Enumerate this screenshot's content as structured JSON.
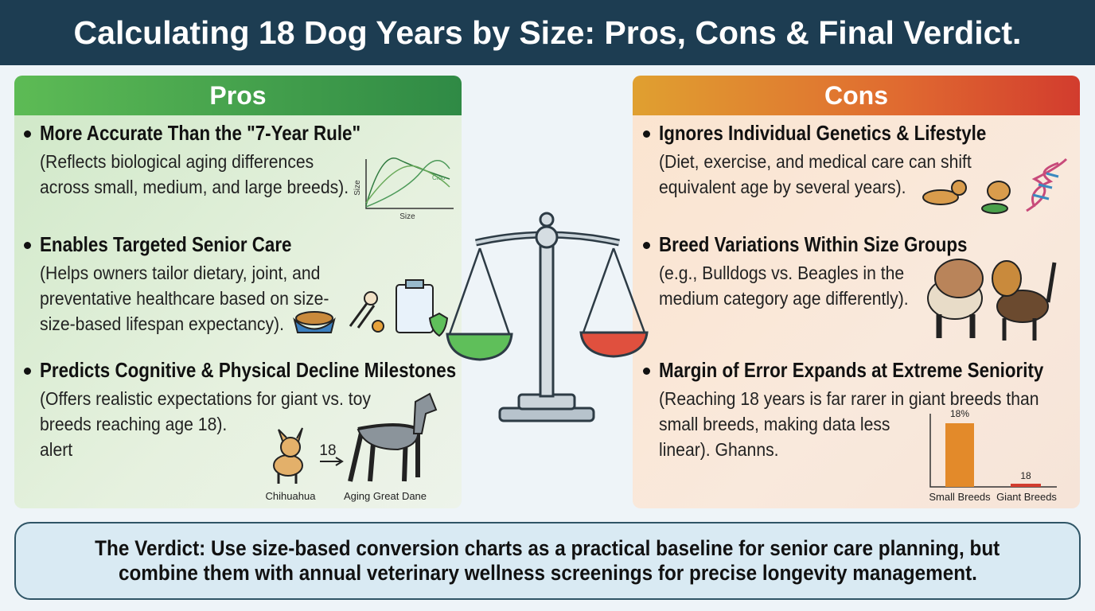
{
  "header": {
    "title": "Calculating 18 Dog Years by Size: Pros, Cons & Final Verdict."
  },
  "pros": {
    "title": "Pros",
    "items": [
      {
        "heading": "More Accurate Than the \"7-Year Rule\"",
        "body_lines": [
          "(Reflects biological aging differences",
          "across small, medium, and large breeds)."
        ]
      },
      {
        "heading": "Enables Targeted Senior Care",
        "body_lines": [
          "(Helps owners tailor dietary, joint, and",
          "preventative healthcare based on size-",
          "size-based lifespan expectancy)."
        ]
      },
      {
        "heading": "Predicts Cognitive & Physical Decline Milestones",
        "body_lines": [
          "(Offers realistic expectations for giant vs. toy",
          "breeds reaching age 18).",
          "alert"
        ]
      }
    ],
    "sketch_chart": {
      "y_label": "Size",
      "x_label": "Size",
      "curve_label": "Cioo"
    },
    "dogs": {
      "left_label": "Chihuahua",
      "arrow_label": "18",
      "right_label": "Aging Great Dane"
    }
  },
  "cons": {
    "title": "Cons",
    "items": [
      {
        "heading": "Ignores Individual Genetics & Lifestyle",
        "body_lines": [
          "(Diet, exercise, and medical care can shift",
          "equivalent age by several years)."
        ]
      },
      {
        "heading": "Breed Variations Within Size Groups",
        "body_lines": [
          "(e.g., Bulldogs vs. Beagles in the",
          "medium category age differently)."
        ]
      },
      {
        "heading": "Margin of Error Expands at Extreme Seniority",
        "body_lines": [
          "(Reaching 18 years is far rarer in giant breeds than",
          "small breeds, making data less",
          "linear). Ghanns."
        ]
      }
    ],
    "mini_chart": {
      "bars": [
        {
          "label": "Small Breeds",
          "value_label": "18%"
        },
        {
          "label": "Giant Breeds",
          "value_label": "18"
        }
      ]
    }
  },
  "verdict": {
    "lines": [
      "The Verdict: Use size-based conversion charts as a practical baseline for senior care planning, but",
      "combine them with annual veterinary wellness screenings for precise longevity management."
    ]
  }
}
